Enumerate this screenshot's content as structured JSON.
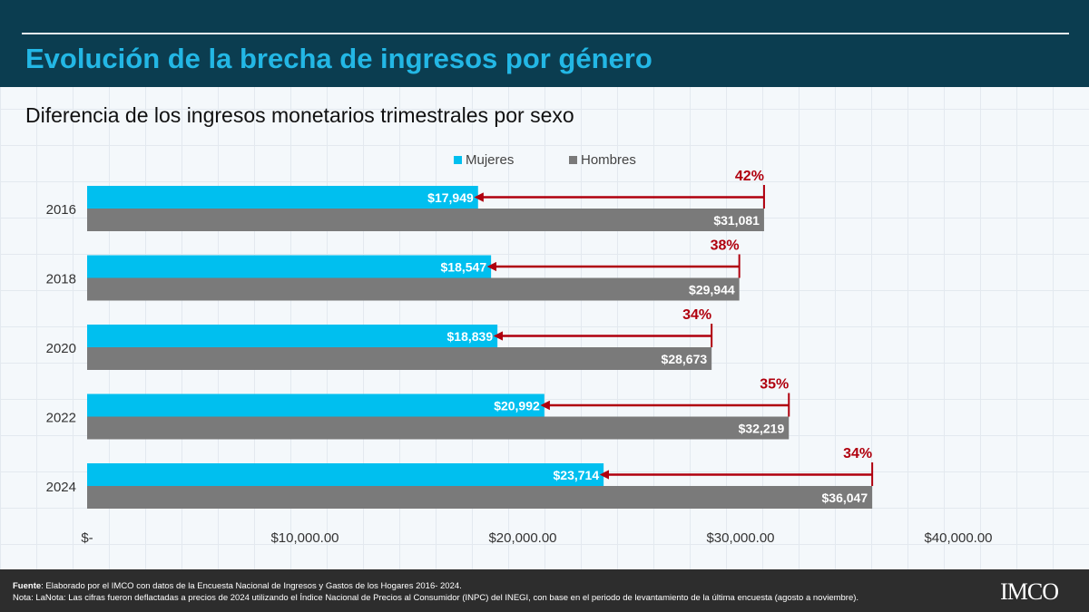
{
  "header": {
    "title": "Evolución de la brecha de ingresos por género"
  },
  "subtitle": "Diferencia de los ingresos monetarios trimestrales por sexo",
  "chart_data": {
    "type": "bar",
    "orientation": "horizontal",
    "categories": [
      "2016",
      "2018",
      "2020",
      "2022",
      "2024"
    ],
    "series": [
      {
        "name": "Mujeres",
        "color": "#00bfef",
        "values": [
          17949,
          18547,
          18839,
          20992,
          23714
        ],
        "labels": [
          "$17,949",
          "$18,547",
          "$18,839",
          "$20,992",
          "$23,714"
        ]
      },
      {
        "name": "Hombres",
        "color": "#7a7a7a",
        "values": [
          31081,
          29944,
          28673,
          32219,
          36047
        ],
        "labels": [
          "$31,081",
          "$29,944",
          "$28,673",
          "$32,219",
          "$36,047"
        ]
      }
    ],
    "gap_annotations": [
      "42%",
      "38%",
      "34%",
      "35%",
      "34%"
    ],
    "annotation_color": "#b0000e",
    "xlim": [
      0,
      45000
    ],
    "x_ticks": [
      0,
      10000,
      20000,
      30000,
      40000
    ],
    "x_tick_labels": [
      "$-",
      "$10,000.00",
      "$20,000.00",
      "$30,000.00",
      "$40,000.00"
    ],
    "legend_position": "top-center",
    "grid": false
  },
  "footer": {
    "source_label": "Fuente",
    "source_text": ": Elaborado por el IMCO con datos de la Encuesta Nacional de Ingresos y Gastos de los Hogares 2016- 2024.",
    "note": "Nota: LaNota: Las cifras fueron deflactadas a precios de 2024 utilizando el Índice Nacional de Precios al Consumidor (INPC) del INEGI, con base en el periodo de levantamiento de la última encuesta (agosto a noviembre).",
    "logo": "IMCO"
  }
}
